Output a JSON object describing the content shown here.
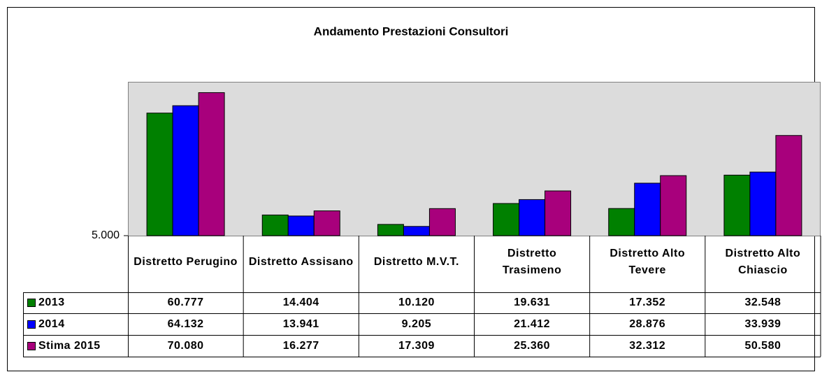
{
  "chart_data": {
    "type": "bar",
    "title": "Andamento Prestazioni Consultori",
    "categories": [
      "Distretto Perugino",
      "Distretto Assisano",
      "Distretto M.V.T.",
      "Distretto Trasimeno",
      "Distretto Alto Tevere",
      "Distretto Alto Chiascio"
    ],
    "series": [
      {
        "name": "2013",
        "color": "#008000",
        "values": [
          60777,
          14404,
          10120,
          19631,
          17352,
          32548
        ],
        "value_labels": [
          "60.777",
          "14.404",
          "10.120",
          "19.631",
          "17.352",
          "32.548"
        ]
      },
      {
        "name": "2014",
        "color": "#0000ff",
        "values": [
          64132,
          13941,
          9205,
          21412,
          28876,
          33939
        ],
        "value_labels": [
          "64.132",
          "13.941",
          "9.205",
          "21.412",
          "28.876",
          "33.939"
        ]
      },
      {
        "name": "Stima 2015",
        "color": "#a8007c",
        "values": [
          70080,
          16277,
          17309,
          25360,
          32312,
          50580
        ],
        "value_labels": [
          "70.080",
          "16.277",
          "17.309",
          "25.360",
          "32.312",
          "50.580"
        ]
      }
    ],
    "ylim": [
      5000,
      75000
    ],
    "yticks": [
      {
        "value": 5000,
        "label": "5.000"
      }
    ]
  }
}
